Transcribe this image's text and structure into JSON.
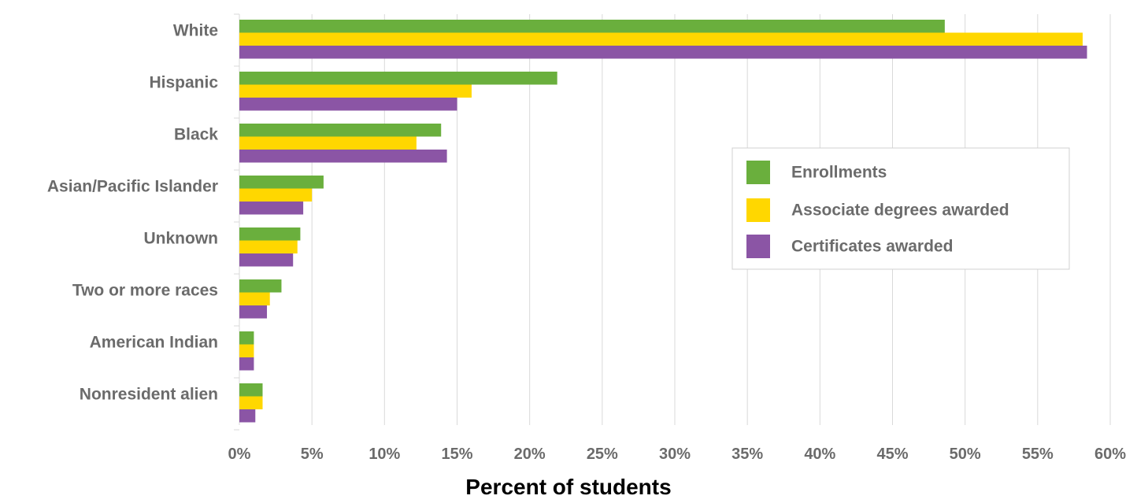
{
  "chart_data": {
    "type": "bar",
    "orientation": "horizontal",
    "categories": [
      "White",
      "Hispanic",
      "Black",
      "Asian/Pacific Islander",
      "Unknown",
      "Two or more races",
      "American Indian",
      "Nonresident alien"
    ],
    "series": [
      {
        "name": "Enrollments",
        "color": "#6AAF3D",
        "values": [
          48.6,
          21.9,
          13.9,
          5.8,
          4.2,
          2.9,
          1.0,
          1.6
        ]
      },
      {
        "name": "Associate degrees awarded",
        "color": "#FFD700",
        "values": [
          58.1,
          16.0,
          12.2,
          5.0,
          4.0,
          2.1,
          1.0,
          1.6
        ]
      },
      {
        "name": "Certificates awarded",
        "color": "#8B55A5",
        "values": [
          58.4,
          15.0,
          14.3,
          4.4,
          3.7,
          1.9,
          1.0,
          1.1
        ]
      }
    ],
    "x_ticks": [
      "0%",
      "5%",
      "10%",
      "15%",
      "20%",
      "25%",
      "30%",
      "35%",
      "40%",
      "45%",
      "50%",
      "55%",
      "60%"
    ],
    "xlim": [
      0,
      60
    ],
    "xlabel": "Percent of students",
    "grid": "vertical",
    "legend_position": "right"
  }
}
